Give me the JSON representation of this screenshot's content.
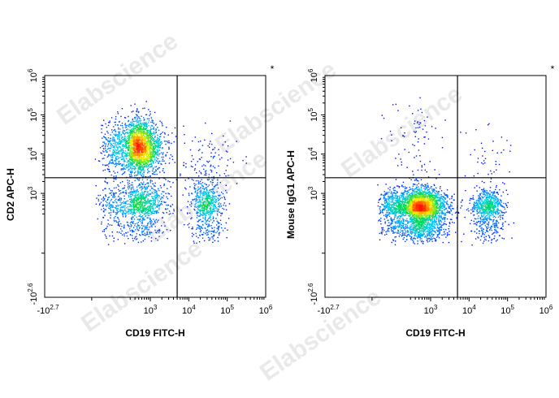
{
  "watermark": "Elabscience",
  "chart_data": [
    {
      "type": "scatter",
      "subtype": "flow-cytometry-density-dot-plot",
      "xlabel": "CD19 FITC-H",
      "ylabel": "CD2 APC-H",
      "corner_mark": "*",
      "x_scale": "biexponential",
      "y_scale": "biexponential",
      "xlim_log10": [
        -2.7,
        6
      ],
      "ylim_log10": [
        -2.6,
        6
      ],
      "x_ticks": [
        {
          "base": "-10",
          "exp": "2.7",
          "value": -501
        },
        {
          "base": "10",
          "exp": "3",
          "value": 1000
        },
        {
          "base": "10",
          "exp": "4",
          "value": 10000
        },
        {
          "base": "10",
          "exp": "5",
          "value": 100000
        },
        {
          "base": "10",
          "exp": "6",
          "value": 1000000
        }
      ],
      "y_ticks": [
        {
          "base": "-10",
          "exp": "2.6",
          "value": -398
        },
        {
          "base": "10",
          "exp": "3",
          "value": 1000
        },
        {
          "base": "10",
          "exp": "4",
          "value": 10000
        },
        {
          "base": "10",
          "exp": "5",
          "value": 100000
        },
        {
          "base": "10",
          "exp": "6",
          "value": 1000000
        }
      ],
      "quadrant_gate": {
        "x": 5000,
        "y": 2500
      },
      "populations": [
        {
          "x_center": 500,
          "y_center": 15000,
          "fraction": 0.55,
          "x_spread_log": 0.3,
          "y_spread_log": 0.35
        },
        {
          "x_center": 500,
          "y_center": 500,
          "fraction": 0.27,
          "x_spread_log": 0.35,
          "y_spread_log": 0.3
        },
        {
          "x_center": 30000,
          "y_center": 500,
          "fraction": 0.15,
          "x_spread_log": 0.22,
          "y_spread_log": 0.3
        },
        {
          "x_center": 30000,
          "y_center": 6000,
          "fraction": 0.03,
          "x_spread_log": 0.4,
          "y_spread_log": 0.4
        }
      ],
      "grid": false,
      "legend": "none"
    },
    {
      "type": "scatter",
      "subtype": "flow-cytometry-density-dot-plot",
      "xlabel": "CD19 FITC-H",
      "ylabel": "Mouse IgG1 APC-H",
      "corner_mark": "*",
      "x_scale": "biexponential",
      "y_scale": "biexponential",
      "xlim_log10": [
        -2.7,
        6
      ],
      "ylim_log10": [
        -2.6,
        6
      ],
      "x_ticks": [
        {
          "base": "-10",
          "exp": "2.7",
          "value": -501
        },
        {
          "base": "10",
          "exp": "3",
          "value": 1000
        },
        {
          "base": "10",
          "exp": "4",
          "value": 10000
        },
        {
          "base": "10",
          "exp": "5",
          "value": 100000
        },
        {
          "base": "10",
          "exp": "6",
          "value": 1000000
        }
      ],
      "y_ticks": [
        {
          "base": "-10",
          "exp": "2.6",
          "value": -398
        },
        {
          "base": "10",
          "exp": "3",
          "value": 1000
        },
        {
          "base": "10",
          "exp": "4",
          "value": 10000
        },
        {
          "base": "10",
          "exp": "5",
          "value": 100000
        },
        {
          "base": "10",
          "exp": "6",
          "value": 1000000
        }
      ],
      "quadrant_gate": {
        "x": 5000,
        "y": 2500
      },
      "populations": [
        {
          "x_center": 500,
          "y_center": 400,
          "fraction": 0.79,
          "x_spread_log": 0.35,
          "y_spread_log": 0.25
        },
        {
          "x_center": 30000,
          "y_center": 400,
          "fraction": 0.18,
          "x_spread_log": 0.22,
          "y_spread_log": 0.25
        },
        {
          "x_center": 400,
          "y_center": 20000,
          "fraction": 0.02,
          "x_spread_log": 0.3,
          "y_spread_log": 0.6
        },
        {
          "x_center": 30000,
          "y_center": 8000,
          "fraction": 0.01,
          "x_spread_log": 0.4,
          "y_spread_log": 0.4
        }
      ],
      "grid": false,
      "legend": "none"
    }
  ]
}
